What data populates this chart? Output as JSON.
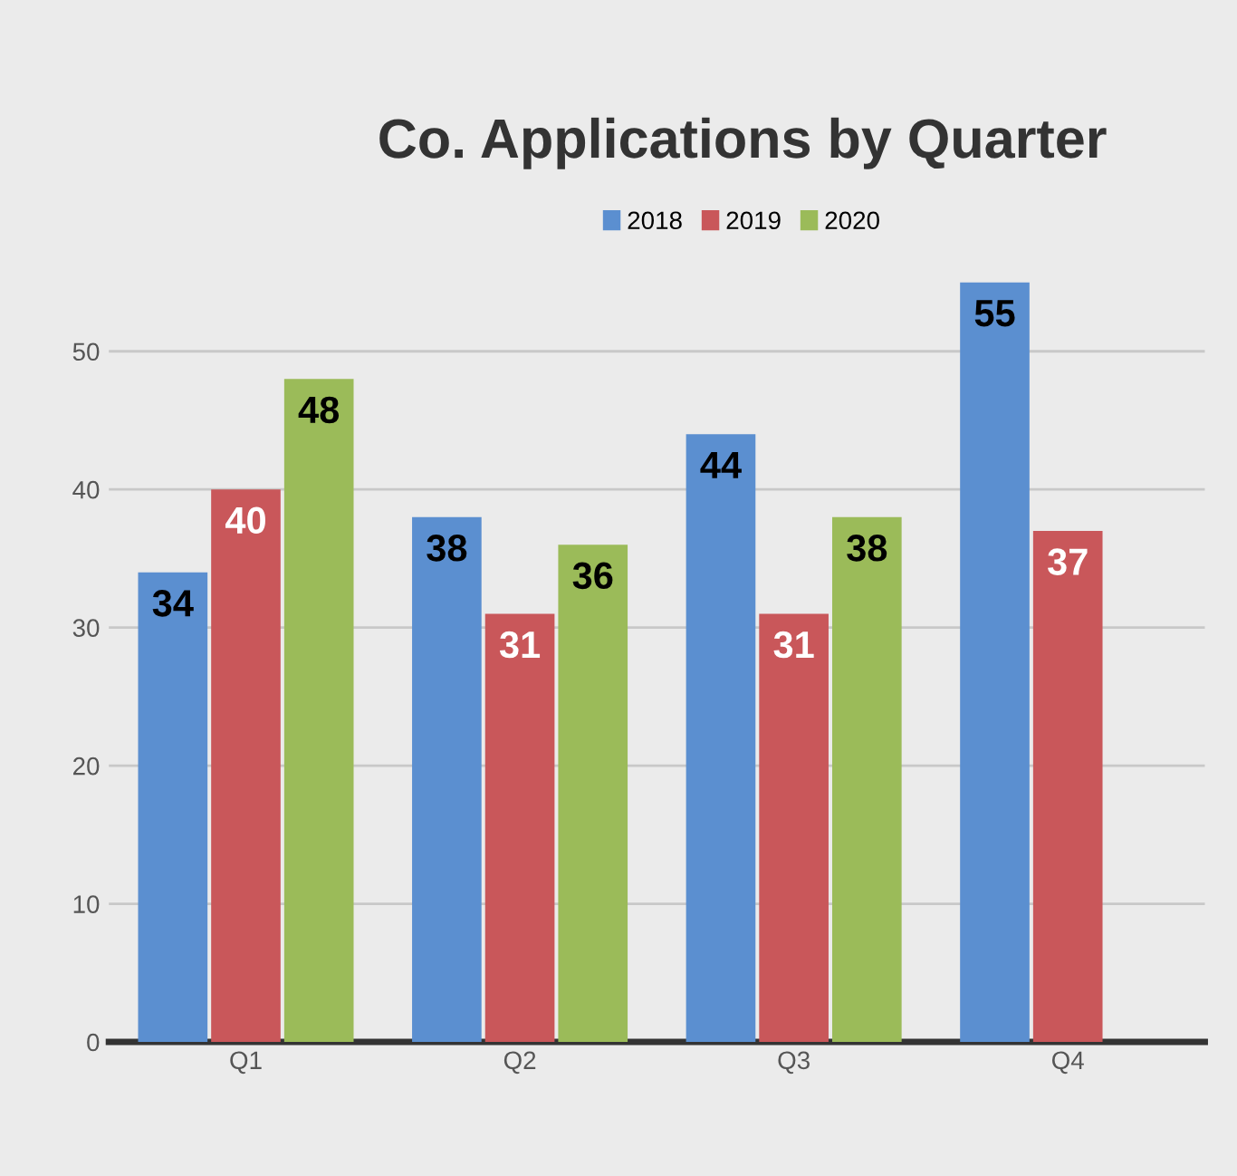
{
  "chart_data": {
    "type": "bar",
    "title": "Co. Applications by Quarter",
    "categories": [
      "Q1",
      "Q2",
      "Q3",
      "Q4"
    ],
    "series": [
      {
        "name": "2018",
        "color": "#5b8fd0",
        "values": [
          34,
          38,
          44,
          55
        ]
      },
      {
        "name": "2019",
        "color": "#c9575a",
        "values": [
          40,
          31,
          31,
          37
        ]
      },
      {
        "name": "2020",
        "color": "#9bbb59",
        "values": [
          48,
          36,
          38,
          null
        ]
      }
    ],
    "ylim": [
      0,
      55
    ],
    "yticks": [
      0,
      10,
      20,
      30,
      40,
      50
    ],
    "grid": "y",
    "legend": "top",
    "data_labels": true
  }
}
